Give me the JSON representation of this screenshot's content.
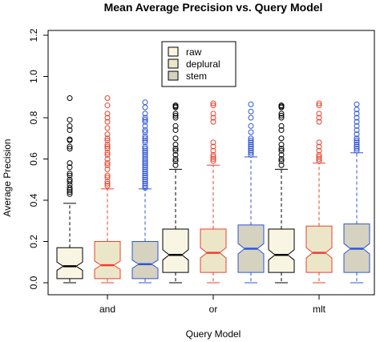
{
  "chart_data": {
    "type": "boxplot",
    "title": "Mean Average Precision vs. Query Model",
    "xlabel": "Query Model",
    "ylabel": "Average Precision",
    "ylim": [
      0,
      1.2
    ],
    "yticks": [
      0.0,
      0.2,
      0.4,
      0.6,
      0.8,
      1.0,
      1.2
    ],
    "ytick_labels": [
      "0.0",
      "0.2",
      "0.4",
      "0.6",
      "0.8",
      "1.0",
      "1.2"
    ],
    "categories": [
      "and",
      "or",
      "mlt"
    ],
    "notched": true,
    "legend": {
      "position": "top-center",
      "entries": [
        {
          "name": "raw",
          "fill": "#f8f5e2"
        },
        {
          "name": "deplural",
          "fill": "#ece6c8"
        },
        {
          "name": "stem",
          "fill": "#d6d2c0"
        }
      ]
    },
    "series": [
      {
        "name": "raw",
        "stroke": "#000000",
        "fill": "#f8f5e2",
        "boxes": [
          {
            "category": "and",
            "min": 0.0,
            "q1": 0.02,
            "median": 0.08,
            "q3": 0.17,
            "max": 0.385,
            "notch": [
              0.06,
              0.1
            ],
            "outliers": [
              0.895,
              0.79,
              0.76,
              0.74,
              0.695,
              0.69,
              0.66,
              0.65,
              0.58,
              0.56,
              0.53,
              0.52,
              0.5,
              0.49,
              0.475,
              0.46,
              0.45,
              0.44,
              0.43
            ]
          },
          {
            "category": "or",
            "min": 0.0,
            "q1": 0.05,
            "median": 0.135,
            "q3": 0.26,
            "max": 0.55,
            "notch": [
              0.11,
              0.16
            ],
            "outliers": [
              0.86,
              0.855,
              0.85,
              0.82,
              0.81,
              0.8,
              0.76,
              0.74,
              0.7,
              0.67,
              0.65,
              0.64,
              0.62,
              0.6,
              0.59,
              0.57
            ]
          },
          {
            "category": "mlt",
            "min": 0.0,
            "q1": 0.05,
            "median": 0.135,
            "q3": 0.26,
            "max": 0.55,
            "notch": [
              0.11,
              0.16
            ],
            "outliers": [
              0.86,
              0.855,
              0.85,
              0.82,
              0.81,
              0.8,
              0.76,
              0.74,
              0.7,
              0.67,
              0.65,
              0.64,
              0.62,
              0.6,
              0.59,
              0.57
            ]
          }
        ]
      },
      {
        "name": "deplural",
        "stroke": "#e8432c",
        "fill": "#ece6c8",
        "boxes": [
          {
            "category": "and",
            "min": 0.0,
            "q1": 0.02,
            "median": 0.085,
            "q3": 0.2,
            "max": 0.455,
            "notch": [
              0.065,
              0.105
            ],
            "outliers": [
              0.895,
              0.86,
              0.82,
              0.8,
              0.78,
              0.75,
              0.72,
              0.7,
              0.69,
              0.67,
              0.66,
              0.65,
              0.63,
              0.62,
              0.6,
              0.58,
              0.57,
              0.55,
              0.52,
              0.51,
              0.49,
              0.48,
              0.47
            ]
          },
          {
            "category": "or",
            "min": 0.0,
            "q1": 0.05,
            "median": 0.145,
            "q3": 0.26,
            "max": 0.57,
            "notch": [
              0.12,
              0.17
            ],
            "outliers": [
              0.87,
              0.86,
              0.82,
              0.8,
              0.78,
              0.68,
              0.66,
              0.64,
              0.62,
              0.61,
              0.6,
              0.59
            ]
          },
          {
            "category": "mlt",
            "min": 0.0,
            "q1": 0.05,
            "median": 0.145,
            "q3": 0.275,
            "max": 0.58,
            "notch": [
              0.12,
              0.17
            ],
            "outliers": [
              0.87,
              0.86,
              0.82,
              0.8,
              0.78,
              0.68,
              0.66,
              0.64,
              0.62,
              0.61,
              0.6,
              0.59
            ]
          }
        ]
      },
      {
        "name": "stem",
        "stroke": "#2f55d4",
        "fill": "#d6d2c0",
        "boxes": [
          {
            "category": "and",
            "min": 0.0,
            "q1": 0.02,
            "median": 0.09,
            "q3": 0.2,
            "max": 0.455,
            "notch": [
              0.07,
              0.11
            ],
            "outliers": [
              0.875,
              0.85,
              0.82,
              0.8,
              0.79,
              0.78,
              0.76,
              0.74,
              0.73,
              0.71,
              0.7,
              0.69,
              0.68,
              0.66,
              0.65,
              0.64,
              0.63,
              0.62,
              0.61,
              0.6,
              0.59,
              0.58,
              0.57,
              0.56,
              0.55,
              0.54,
              0.53,
              0.52,
              0.51,
              0.5,
              0.49,
              0.48,
              0.47,
              0.46
            ]
          },
          {
            "category": "or",
            "min": 0.0,
            "q1": 0.05,
            "median": 0.165,
            "q3": 0.28,
            "max": 0.61,
            "notch": [
              0.14,
              0.19
            ],
            "outliers": [
              0.865,
              0.83,
              0.8,
              0.76,
              0.73,
              0.7,
              0.69,
              0.68,
              0.67,
              0.66,
              0.65,
              0.64,
              0.63,
              0.62
            ]
          },
          {
            "category": "mlt",
            "min": 0.0,
            "q1": 0.05,
            "median": 0.165,
            "q3": 0.285,
            "max": 0.63,
            "notch": [
              0.14,
              0.19
            ],
            "outliers": [
              0.865,
              0.84,
              0.82,
              0.8,
              0.78,
              0.76,
              0.74,
              0.72,
              0.7,
              0.69,
              0.68,
              0.67,
              0.66,
              0.65,
              0.64
            ]
          }
        ]
      }
    ]
  }
}
